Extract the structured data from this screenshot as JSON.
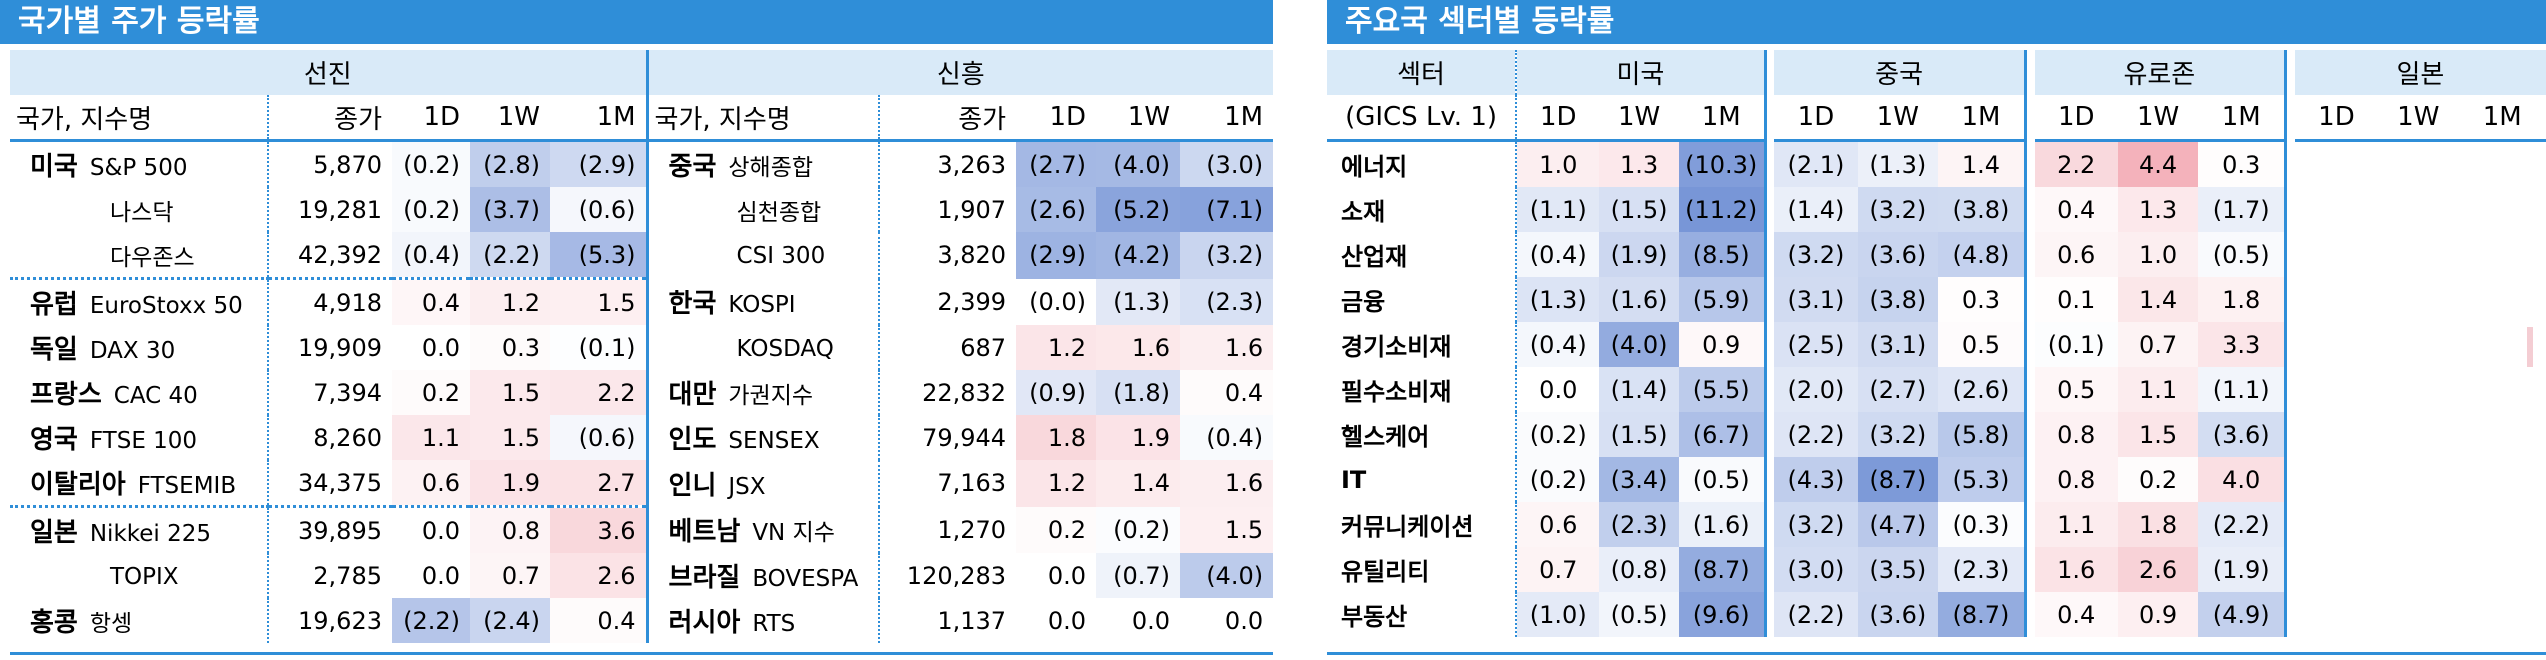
{
  "left": {
    "title": "국가별 주가 등락률",
    "group_developed": "선진",
    "group_emerging": "신흥",
    "headers": {
      "name": "국가, 지수명",
      "close": "종가",
      "d1": "1D",
      "w1": "1W",
      "m1": "1M"
    },
    "developed": [
      {
        "country": "미국",
        "index": "S&P 500",
        "close": "5,870",
        "d1": "(0.2)",
        "w1": "(2.8)",
        "m1": "(2.9)"
      },
      {
        "country": "",
        "index": "나스닥",
        "close": "19,281",
        "d1": "(0.2)",
        "w1": "(3.7)",
        "m1": "(0.6)"
      },
      {
        "country": "",
        "index": "다우존스",
        "close": "42,392",
        "d1": "(0.4)",
        "w1": "(2.2)",
        "m1": "(5.3)"
      },
      {
        "country": "유럽",
        "index": "EuroStoxx 50",
        "close": "4,918",
        "d1": "0.4",
        "w1": "1.2",
        "m1": "1.5"
      },
      {
        "country": "독일",
        "index": "DAX 30",
        "close": "19,909",
        "d1": "0.0",
        "w1": "0.3",
        "m1": "(0.1)"
      },
      {
        "country": "프랑스",
        "index": "CAC 40",
        "close": "7,394",
        "d1": "0.2",
        "w1": "1.5",
        "m1": "2.2"
      },
      {
        "country": "영국",
        "index": "FTSE 100",
        "close": "8,260",
        "d1": "1.1",
        "w1": "1.5",
        "m1": "(0.6)"
      },
      {
        "country": "이탈리아",
        "index": "FTSEMIB",
        "close": "34,375",
        "d1": "0.6",
        "w1": "1.9",
        "m1": "2.7"
      },
      {
        "country": "일본",
        "index": "Nikkei 225",
        "close": "39,895",
        "d1": "0.0",
        "w1": "0.8",
        "m1": "3.6"
      },
      {
        "country": "",
        "index": "TOPIX",
        "close": "2,785",
        "d1": "0.0",
        "w1": "0.7",
        "m1": "2.6"
      },
      {
        "country": "홍콩",
        "index": "항셍",
        "close": "19,623",
        "d1": "(2.2)",
        "w1": "(2.4)",
        "m1": "0.4"
      }
    ],
    "emerging": [
      {
        "country": "중국",
        "index": "상해종합",
        "close": "3,263",
        "d1": "(2.7)",
        "w1": "(4.0)",
        "m1": "(3.0)"
      },
      {
        "country": "",
        "index": "심천종합",
        "close": "1,907",
        "d1": "(2.6)",
        "w1": "(5.2)",
        "m1": "(7.1)"
      },
      {
        "country": "",
        "index": "CSI 300",
        "close": "3,820",
        "d1": "(2.9)",
        "w1": "(4.2)",
        "m1": "(3.2)"
      },
      {
        "country": "한국",
        "index": "KOSPI",
        "close": "2,399",
        "d1": "(0.0)",
        "w1": "(1.3)",
        "m1": "(2.3)"
      },
      {
        "country": "",
        "index": "KOSDAQ",
        "close": "687",
        "d1": "1.2",
        "w1": "1.6",
        "m1": "1.6"
      },
      {
        "country": "대만",
        "index": "가권지수",
        "close": "22,832",
        "d1": "(0.9)",
        "w1": "(1.8)",
        "m1": "0.4"
      },
      {
        "country": "인도",
        "index": "SENSEX",
        "close": "79,944",
        "d1": "1.8",
        "w1": "1.9",
        "m1": "(0.4)"
      },
      {
        "country": "인니",
        "index": "JSX",
        "close": "7,163",
        "d1": "1.2",
        "w1": "1.4",
        "m1": "1.6"
      },
      {
        "country": "베트남",
        "index": "VN 지수",
        "close": "1,270",
        "d1": "0.2",
        "w1": "(0.2)",
        "m1": "1.5"
      },
      {
        "country": "브라질",
        "index": "BOVESPA",
        "close": "120,283",
        "d1": "0.0",
        "w1": "(0.7)",
        "m1": "(4.0)"
      },
      {
        "country": "러시아",
        "index": "RTS",
        "close": "1,137",
        "d1": "0.0",
        "w1": "0.0",
        "m1": "0.0"
      }
    ]
  },
  "right": {
    "title": "주요국 섹터별 등락률",
    "sector_header": "섹터",
    "gics_label": "(GICS Lv. 1)",
    "regions": [
      "미국",
      "중국",
      "유로존",
      "일본"
    ],
    "periods": [
      "1D",
      "1W",
      "1M"
    ],
    "rows": [
      {
        "sector": "에너지",
        "us": [
          "1.0",
          "1.3",
          "(10.3)"
        ],
        "cn": [
          "(2.1)",
          "(1.3)",
          "1.4"
        ],
        "eu": [
          "2.2",
          "4.4",
          "0.3"
        ]
      },
      {
        "sector": "소재",
        "us": [
          "(1.1)",
          "(1.5)",
          "(11.2)"
        ],
        "cn": [
          "(1.4)",
          "(3.2)",
          "(3.8)"
        ],
        "eu": [
          "0.4",
          "1.3",
          "(1.7)"
        ]
      },
      {
        "sector": "산업재",
        "us": [
          "(0.4)",
          "(1.9)",
          "(8.5)"
        ],
        "cn": [
          "(3.2)",
          "(3.6)",
          "(4.8)"
        ],
        "eu": [
          "0.6",
          "1.0",
          "(0.5)"
        ]
      },
      {
        "sector": "금융",
        "us": [
          "(1.3)",
          "(1.6)",
          "(5.9)"
        ],
        "cn": [
          "(3.1)",
          "(3.8)",
          "0.3"
        ],
        "eu": [
          "0.1",
          "1.4",
          "1.8"
        ]
      },
      {
        "sector": "경기소비재",
        "us": [
          "(0.4)",
          "(4.0)",
          "0.9"
        ],
        "cn": [
          "(2.5)",
          "(3.1)",
          "0.5"
        ],
        "eu": [
          "(0.1)",
          "0.7",
          "3.3"
        ]
      },
      {
        "sector": "필수소비재",
        "us": [
          "0.0",
          "(1.4)",
          "(5.5)"
        ],
        "cn": [
          "(2.0)",
          "(2.7)",
          "(2.6)"
        ],
        "eu": [
          "0.5",
          "1.1",
          "(1.1)"
        ]
      },
      {
        "sector": "헬스케어",
        "us": [
          "(0.2)",
          "(1.5)",
          "(6.7)"
        ],
        "cn": [
          "(2.2)",
          "(3.2)",
          "(5.8)"
        ],
        "eu": [
          "0.8",
          "1.5",
          "(3.6)"
        ]
      },
      {
        "sector": "IT",
        "us": [
          "(0.2)",
          "(3.4)",
          "(0.5)"
        ],
        "cn": [
          "(4.3)",
          "(8.7)",
          "(5.3)"
        ],
        "eu": [
          "0.8",
          "0.2",
          "4.0"
        ]
      },
      {
        "sector": "커뮤니케이션",
        "us": [
          "0.6",
          "(2.3)",
          "(1.6)"
        ],
        "cn": [
          "(3.2)",
          "(4.7)",
          "(0.3)"
        ],
        "eu": [
          "1.1",
          "1.8",
          "(2.2)"
        ]
      },
      {
        "sector": "유틸리티",
        "us": [
          "0.7",
          "(0.8)",
          "(8.7)"
        ],
        "cn": [
          "(3.0)",
          "(3.5)",
          "(2.3)"
        ],
        "eu": [
          "1.6",
          "2.6",
          "(1.9)"
        ]
      },
      {
        "sector": "부동산",
        "us": [
          "(1.0)",
          "(0.5)",
          "(9.6)"
        ],
        "cn": [
          "(2.2)",
          "(3.6)",
          "(8.7)"
        ],
        "eu": [
          "0.4",
          "0.9",
          "(4.9)"
        ]
      }
    ]
  },
  "colors": {
    "accent": "#2f8ed8",
    "header_fill": "#d9eaf8",
    "negative": "#7f9fd6",
    "positive": "#f2a7b2"
  }
}
